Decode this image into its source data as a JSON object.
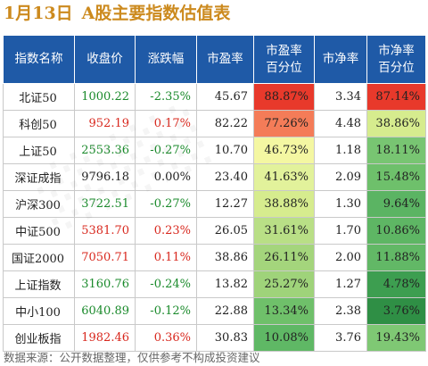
{
  "title": {
    "date": "1月13日",
    "text": "A股主要指数估值表"
  },
  "headers": {
    "name": "指数名称",
    "close": "收盘价",
    "change": "涨跌幅",
    "pe": "市盈率",
    "pe_pct_line1": "市盈率",
    "pe_pct_line2": "百分位",
    "pb": "市净率",
    "pb_pct_line1": "市净率",
    "pb_pct_line2": "百分位"
  },
  "rows": [
    {
      "name": "北证50",
      "close": "1000.22",
      "change": "-2.35%",
      "pe": "45.67",
      "pe_pct": "88.87%",
      "pb": "3.34",
      "pb_pct": "87.14%",
      "dir": "down",
      "pe_color": "#e8392b",
      "pb_color": "#e8392b"
    },
    {
      "name": "科创50",
      "close": "952.19",
      "change": "0.17%",
      "pe": "82.22",
      "pe_pct": "77.26%",
      "pb": "4.48",
      "pb_pct": "38.86%",
      "dir": "up",
      "pe_color": "#f47c58",
      "pb_color": "#d6ec8e"
    },
    {
      "name": "上证50",
      "close": "2553.36",
      "change": "-0.27%",
      "pe": "10.70",
      "pe_pct": "46.73%",
      "pb": "1.18",
      "pb_pct": "18.11%",
      "dir": "down",
      "pe_color": "#f4f7a2",
      "pb_color": "#78c572"
    },
    {
      "name": "深证成指",
      "close": "9796.18",
      "change": "0.00%",
      "pe": "23.40",
      "pe_pct": "41.63%",
      "pb": "2.09",
      "pb_pct": "15.48%",
      "dir": "flat",
      "pe_color": "#e2f29b",
      "pb_color": "#6ec06b"
    },
    {
      "name": "沪深300",
      "close": "3722.51",
      "change": "-0.27%",
      "pe": "12.27",
      "pe_pct": "38.88%",
      "pb": "1.30",
      "pb_pct": "9.64%",
      "dir": "down",
      "pe_color": "#d6ec8e",
      "pb_color": "#5bb463"
    },
    {
      "name": "中证500",
      "close": "5381.70",
      "change": "0.23%",
      "pe": "26.05",
      "pe_pct": "31.61%",
      "pb": "1.70",
      "pb_pct": "10.86%",
      "dir": "up",
      "pe_color": "#b9df86",
      "pb_color": "#5eb664"
    },
    {
      "name": "国证2000",
      "close": "7050.71",
      "change": "0.11%",
      "pe": "38.86",
      "pe_pct": "26.11%",
      "pb": "2.00",
      "pb_pct": "11.88%",
      "dir": "up",
      "pe_color": "#a4d57c",
      "pb_color": "#62b866"
    },
    {
      "name": "上证指数",
      "close": "3160.76",
      "change": "-0.24%",
      "pe": "13.82",
      "pe_pct": "25.27%",
      "pb": "1.27",
      "pb_pct": "4.78%",
      "dir": "down",
      "pe_color": "#9fd37a",
      "pb_color": "#3d9e50"
    },
    {
      "name": "中小100",
      "close": "6040.89",
      "change": "-0.12%",
      "pe": "22.88",
      "pe_pct": "13.34%",
      "pb": "2.38",
      "pb_pct": "3.76%",
      "dir": "down",
      "pe_color": "#6fc06a",
      "pb_color": "#2f8f45"
    },
    {
      "name": "创业板指",
      "close": "1982.46",
      "change": "0.36%",
      "pe": "30.83",
      "pe_pct": "10.08%",
      "pb": "3.76",
      "pb_pct": "19.43%",
      "dir": "up",
      "pe_color": "#5fb865",
      "pb_color": "#7fc874"
    }
  ],
  "footer": "数据来源：公开数据整理，仅供参考不构成投资建议",
  "colors": {
    "header_bg": "#1f5aa7",
    "title": "#cc8a1e",
    "up": "#d8281e",
    "down": "#1a8a2b",
    "flat": "#222222"
  }
}
